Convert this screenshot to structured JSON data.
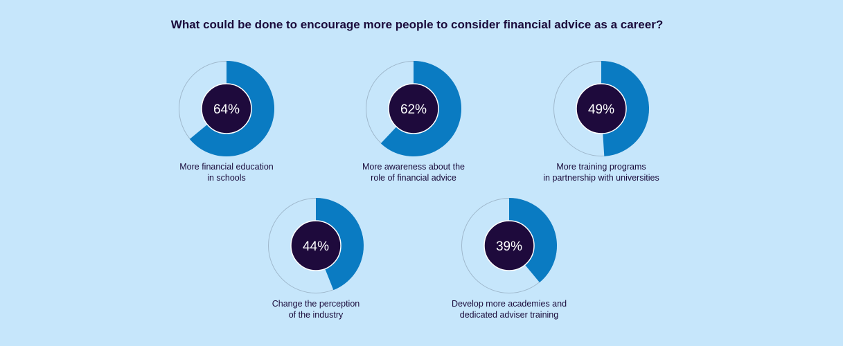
{
  "chart_data": {
    "type": "pie",
    "title": "What could be done to encourage more people to consider financial advice as a career?",
    "items": [
      {
        "label_lines": [
          "More financial education",
          "in schools"
        ],
        "value": 64,
        "display": "64%"
      },
      {
        "label_lines": [
          "More awareness about the",
          "role of financial advice"
        ],
        "value": 62,
        "display": "62%"
      },
      {
        "label_lines": [
          "More training programs",
          "in partnership with universities"
        ],
        "value": 49,
        "display": "49%"
      },
      {
        "label_lines": [
          "Change the perception",
          "of the industry"
        ],
        "value": 44,
        "display": "44%"
      },
      {
        "label_lines": [
          "Develop more academies and",
          "dedicated adviser training"
        ],
        "value": 39,
        "display": "39%"
      }
    ],
    "colors": {
      "fill": "#0a7bc2",
      "center": "#1e0a3c",
      "background": "#c6e6fb"
    }
  }
}
